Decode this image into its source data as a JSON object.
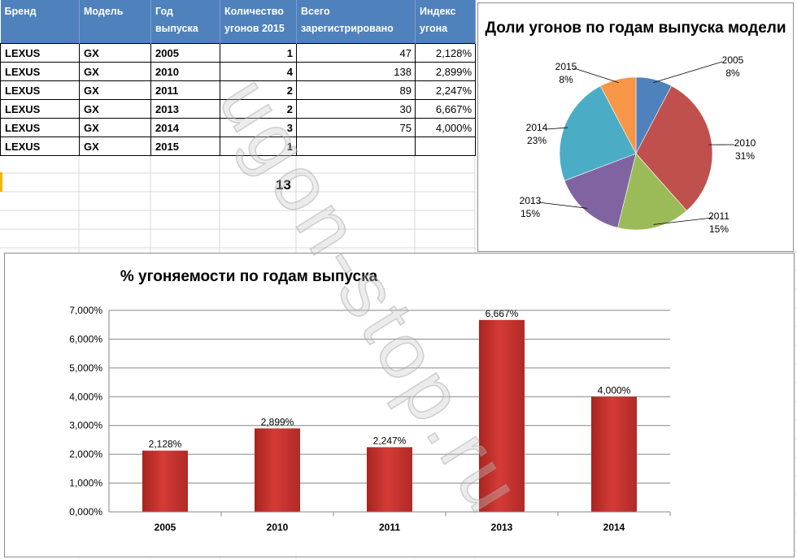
{
  "table": {
    "headers": [
      "Бренд",
      "Модель",
      "Год выпуска",
      "Количество угонов 2015",
      "Всего зарегистрировано",
      "Индекс угона"
    ],
    "rows": [
      [
        "LEXUS",
        "GX",
        "2005",
        "1",
        "47",
        "2,128%"
      ],
      [
        "LEXUS",
        "GX",
        "2010",
        "4",
        "138",
        "2,899%"
      ],
      [
        "LEXUS",
        "GX",
        "2011",
        "2",
        "89",
        "2,247%"
      ],
      [
        "LEXUS",
        "GX",
        "2013",
        "2",
        "30",
        "6,667%"
      ],
      [
        "LEXUS",
        "GX",
        "2014",
        "3",
        "75",
        "4,000%"
      ],
      [
        "LEXUS",
        "GX",
        "2015",
        "1",
        "",
        ""
      ]
    ],
    "total": "13"
  },
  "watermark": "ugon-stop.ru",
  "colors": {
    "header_bg": "#4f81bd",
    "bar": "#c0302c"
  },
  "chart_data": [
    {
      "type": "pie",
      "title": "Доли угонов по годам выпуска модели",
      "slices": [
        {
          "label": "2005",
          "pct_label": "8%",
          "value": 1,
          "color": "#4f81bd"
        },
        {
          "label": "2010",
          "pct_label": "31%",
          "value": 4,
          "color": "#c0504d"
        },
        {
          "label": "2011",
          "pct_label": "15%",
          "value": 2,
          "color": "#9bbb59"
        },
        {
          "label": "2013",
          "pct_label": "15%",
          "value": 2,
          "color": "#8064a2"
        },
        {
          "label": "2014",
          "pct_label": "23%",
          "value": 3,
          "color": "#4bacc6"
        },
        {
          "label": "2015",
          "pct_label": "8%",
          "value": 1,
          "color": "#f79646"
        }
      ],
      "legend": "none"
    },
    {
      "type": "bar",
      "title": "% угоняемости по годам выпуска",
      "categories": [
        "2005",
        "2010",
        "2011",
        "2013",
        "2014"
      ],
      "values": [
        2.128,
        2.899,
        2.247,
        6.667,
        4.0
      ],
      "data_labels": [
        "2,128%",
        "2,899%",
        "2,247%",
        "6,667%",
        "4,000%"
      ],
      "yticks": [
        "0,000%",
        "1,000%",
        "2,000%",
        "3,000%",
        "4,000%",
        "5,000%",
        "6,000%",
        "7,000%"
      ],
      "ylim": [
        0,
        7
      ],
      "grid": true,
      "legend": "none"
    }
  ]
}
